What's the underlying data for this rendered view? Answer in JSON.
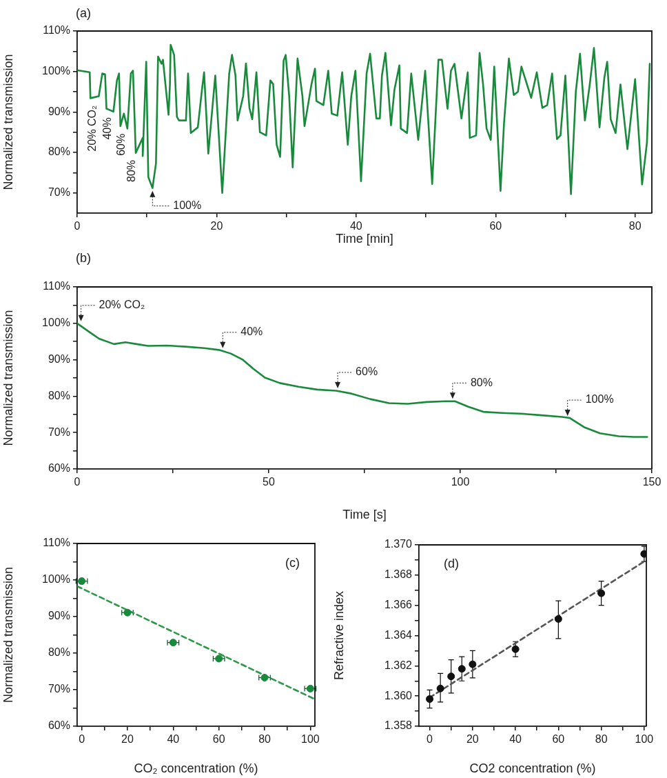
{
  "chart_data": [
    {
      "type": "line",
      "title": "(a)",
      "xlabel": "Time [min]",
      "ylabel": "Normalized transmission",
      "color": "#188a3c",
      "x": [
        0.1,
        1.8,
        1.9,
        3.1,
        3.6,
        4.0,
        4.2,
        5.2,
        5.7,
        6.0,
        6.2,
        6.7,
        7.2,
        7.7,
        8.0,
        8.4,
        9.4,
        9.4,
        9.9,
        10.2,
        10.8,
        11.3,
        11.6,
        12.1,
        12.3,
        13.1,
        13.3,
        13.4,
        13.9,
        14.3,
        14.6,
        15.6,
        15.9,
        16.3,
        17.3,
        17.9,
        18.2,
        18.8,
        19.8,
        20.8,
        21.8,
        22.2,
        22.7,
        23.0,
        23.8,
        24.2,
        24.7,
        25.1,
        25.7,
        26.2,
        27.1,
        27.7,
        28.1,
        28.6,
        29.1,
        29.6,
        29.9,
        30.4,
        30.9,
        31.6,
        32.3,
        32.6,
        33.6,
        34.1,
        34.3,
        35.3,
        36.0,
        36.5,
        37.3,
        38.0,
        38.8,
        39.3,
        39.9,
        40.7,
        41.5,
        42.0,
        42.9,
        43.4,
        43.7,
        44.2,
        45.0,
        45.5,
        46.2,
        46.4,
        47.3,
        47.9,
        48.9,
        49.9,
        50.9,
        51.8,
        52.3,
        53.1,
        53.6,
        54.1,
        55.1,
        56.0,
        56.3,
        57.2,
        57.7,
        58.2,
        58.7,
        59.3,
        59.8,
        60.7,
        61.2,
        61.9,
        62.6,
        63.2,
        63.7,
        65.1,
        65.9,
        66.7,
        67.4,
        68.1,
        68.8,
        69.3,
        70.0,
        70.8,
        71.5,
        72.1,
        72.8,
        73.5,
        74.1,
        74.9,
        75.6,
        76.0,
        76.5,
        77.2,
        77.9,
        78.9,
        80.0,
        81.0,
        81.7,
        82.1
      ],
      "values": [
        100.3,
        99.8,
        93.4,
        93.9,
        99.5,
        99.3,
        90.8,
        90.1,
        97.8,
        99.5,
        86.5,
        89.6,
        85.9,
        99.5,
        100.2,
        79.9,
        83.6,
        79.1,
        102.4,
        73.9,
        71.2,
        77.3,
        103.7,
        101.9,
        102.9,
        89.3,
        96.8,
        106.6,
        104.1,
        88.8,
        87.9,
        87.9,
        99.5,
        84.8,
        86.2,
        95.6,
        99.8,
        79.7,
        99.0,
        70.0,
        99.5,
        104.1,
        99.0,
        87.9,
        93.9,
        102.0,
        91.0,
        88.2,
        99.8,
        85.0,
        84.2,
        97.8,
        96.9,
        81.9,
        78.9,
        102.7,
        104.1,
        93.9,
        76.3,
        103.2,
        93.9,
        86.5,
        96.9,
        100.7,
        92.7,
        91.7,
        100.2,
        89.6,
        89.1,
        99.8,
        81.9,
        93.9,
        100.2,
        72.9,
        99.5,
        104.4,
        88.4,
        88.4,
        99.0,
        104.6,
        86.7,
        95.6,
        101.5,
        85.9,
        84.8,
        99.5,
        83.1,
        100.2,
        72.2,
        102.9,
        102.9,
        90.8,
        100.2,
        101.9,
        88.4,
        99.8,
        83.6,
        84.2,
        104.6,
        96.8,
        85.9,
        83.1,
        101.2,
        70.5,
        87.1,
        103.2,
        94.2,
        95.0,
        101.2,
        93.5,
        99.8,
        91.0,
        91.7,
        99.5,
        83.3,
        84.2,
        99.0,
        69.7,
        95.0,
        104.4,
        87.9,
        96.8,
        105.8,
        86.2,
        98.6,
        102.4,
        88.2,
        84.8,
        96.8,
        80.8,
        98.1,
        72.1,
        82.5,
        101.9
      ],
      "xlim": [
        0,
        82.4
      ],
      "xticks": [
        0,
        {
          "value": 10,
          "label": null
        },
        20,
        {
          "value": 30,
          "label": null
        },
        40,
        {
          "value": 50,
          "label": null
        },
        60,
        {
          "value": 70,
          "label": null
        },
        80
      ],
      "ylim": [
        65,
        110
      ],
      "yticks": [
        {
          "value": 70,
          "label": "70%"
        },
        {
          "value": 75,
          "label": null
        },
        {
          "value": 80,
          "label": "80%"
        },
        {
          "value": 85,
          "label": null
        },
        {
          "value": 90,
          "label": "90%"
        },
        {
          "value": 95,
          "label": null
        },
        {
          "value": 100,
          "label": "100%"
        },
        {
          "value": 105,
          "label": null
        },
        {
          "value": 110,
          "label": "110%"
        }
      ],
      "annotations": [
        {
          "text": "20% CO₂",
          "x": 2.5,
          "y": 93
        },
        {
          "text": "40%",
          "x": 4.7,
          "y": 90
        },
        {
          "text": "60%",
          "x": 6.7,
          "y": 86
        },
        {
          "text": "80%",
          "x": 8.2,
          "y": 79.5
        },
        {
          "text": "100%",
          "x": 10.8,
          "y": 71.2
        }
      ]
    },
    {
      "type": "line",
      "title": "(b)",
      "xlabel": "Time [s]",
      "ylabel": "Normalized transmission",
      "color": "#188a3c",
      "x": [
        0,
        2.8,
        5.7,
        9.6,
        12.6,
        15.5,
        18.5,
        23.4,
        28.3,
        33.2,
        37,
        40.1,
        43.1,
        46,
        49,
        52.9,
        57.8,
        62.7,
        67.6,
        71.6,
        76.5,
        81.4,
        86.3,
        91.2,
        96.2,
        98.6,
        102.1,
        106,
        110.9,
        115.8,
        120.7,
        126.6,
        128.6,
        132.5,
        136.5,
        141.4,
        145.3,
        148.8
      ],
      "values": [
        100,
        97.9,
        95.8,
        94.3,
        94.8,
        94.3,
        93.8,
        93.9,
        93.6,
        93.2,
        92.7,
        91.7,
        90.1,
        87.5,
        85.1,
        83.6,
        82.6,
        81.8,
        81.5,
        80.7,
        79.2,
        78.1,
        77.9,
        78.4,
        78.6,
        78.6,
        77.1,
        75.7,
        75.4,
        75.2,
        74.8,
        74.3,
        74.0,
        71.4,
        69.8,
        69.0,
        68.8,
        68.8
      ],
      "xlim": [
        0,
        150
      ],
      "xticks": [
        0,
        {
          "value": 25,
          "label": null
        },
        50,
        {
          "value": 75,
          "label": null
        },
        100,
        {
          "value": 125,
          "label": null
        },
        150
      ],
      "ylim": [
        60,
        110
      ],
      "yticks": [
        {
          "value": 60,
          "label": "60%"
        },
        {
          "value": 65,
          "label": null
        },
        {
          "value": 70,
          "label": "70%"
        },
        {
          "value": 75,
          "label": null
        },
        {
          "value": 80,
          "label": "80%"
        },
        {
          "value": 85,
          "label": null
        },
        {
          "value": 90,
          "label": "90%"
        },
        {
          "value": 95,
          "label": null
        },
        {
          "value": 100,
          "label": "100%"
        },
        {
          "value": 105,
          "label": null
        },
        {
          "value": 110,
          "label": "110%"
        }
      ],
      "annotations": [
        {
          "text": "20% CO₂",
          "x": 1,
          "y": 100
        },
        {
          "text": "40%",
          "x": 38,
          "y": 92.6
        },
        {
          "text": "60%",
          "x": 68,
          "y": 81.6
        },
        {
          "text": "80%",
          "x": 98,
          "y": 78.7
        },
        {
          "text": "100%",
          "x": 128,
          "y": 74
        }
      ]
    },
    {
      "type": "scatter",
      "title": "(c)",
      "xlabel": "CO₂ concentration (%)",
      "ylabel": "Normalized transmission",
      "marker": "circle",
      "xlim": [
        -2,
        102
      ],
      "xticks": [
        0,
        {
          "value": 10,
          "label": null
        },
        20,
        {
          "value": 30,
          "label": null
        },
        40,
        {
          "value": 50,
          "label": null
        },
        60,
        {
          "value": 70,
          "label": null
        },
        80,
        {
          "value": 90,
          "label": null
        },
        100
      ],
      "ylim": [
        60,
        110
      ],
      "yticks": [
        {
          "value": 60,
          "label": "60%"
        },
        {
          "value": 65,
          "label": null
        },
        {
          "value": 70,
          "label": "70%"
        },
        {
          "value": 75,
          "label": null
        },
        {
          "value": 80,
          "label": "80%"
        },
        {
          "value": 85,
          "label": null
        },
        {
          "value": 90,
          "label": "90%"
        },
        {
          "value": 95,
          "label": null
        },
        {
          "value": 100,
          "label": "100%"
        },
        {
          "value": 105,
          "label": null
        },
        {
          "value": 110,
          "label": "110%"
        }
      ],
      "series": [
        {
          "color": "#188a3c",
          "x": [
            0,
            20,
            40,
            60,
            80,
            100
          ],
          "values": [
            99.7,
            91.1,
            82.9,
            78.5,
            73.3,
            70.3
          ],
          "xerrors": [
            2.5,
            2.5,
            2.5,
            2.5,
            2.5,
            2.5
          ]
        },
        {
          "type": "line",
          "color": "#2a9a48",
          "marker": "none",
          "line_style": "dashed",
          "x": [
            -2,
            102
          ],
          "values": [
            98.3,
            67.4
          ]
        }
      ]
    },
    {
      "type": "scatter",
      "title": "(d)",
      "xlabel": "CO2 concentration (%)",
      "ylabel": "Refractive index",
      "marker": "circle",
      "xlim": [
        -5,
        101
      ],
      "xticks": [
        0,
        {
          "value": 10,
          "label": null
        },
        20,
        {
          "value": 30,
          "label": null
        },
        40,
        {
          "value": 50,
          "label": null
        },
        60,
        {
          "value": 70,
          "label": null
        },
        80,
        {
          "value": 90,
          "label": null
        },
        100
      ],
      "ylim": [
        1.358,
        1.37
      ],
      "yticks": [
        {
          "value": 1.358,
          "label": "1.358"
        },
        {
          "value": 1.359,
          "label": null
        },
        {
          "value": 1.36,
          "label": "1.360"
        },
        {
          "value": 1.361,
          "label": null
        },
        {
          "value": 1.362,
          "label": "1.362"
        },
        {
          "value": 1.363,
          "label": null
        },
        {
          "value": 1.364,
          "label": "1.364"
        },
        {
          "value": 1.365,
          "label": null
        },
        {
          "value": 1.366,
          "label": "1.366"
        },
        {
          "value": 1.367,
          "label": null
        },
        {
          "value": 1.368,
          "label": "1.368"
        },
        {
          "value": 1.369,
          "label": null
        },
        {
          "value": 1.37,
          "label": "1.370"
        }
      ],
      "series": [
        {
          "color": "#111111",
          "x": [
            0,
            5,
            10,
            15,
            20,
            40,
            60,
            80,
            100
          ],
          "values": [
            1.3598,
            1.3605,
            1.3613,
            1.3618,
            1.3621,
            1.3631,
            1.3651,
            1.3668,
            1.3694
          ],
          "errors": [
            [
              1.3592,
              1.3604
            ],
            [
              1.3596,
              1.3615
            ],
            [
              1.3602,
              1.3624
            ],
            [
              1.361,
              1.3626
            ],
            [
              1.3612,
              1.363
            ],
            [
              1.3626,
              1.3636
            ],
            [
              1.3638,
              1.3663
            ],
            [
              1.366,
              1.3676
            ],
            [
              1.3689,
              1.3699
            ]
          ]
        },
        {
          "type": "line",
          "color": "#555555",
          "marker": "none",
          "line_style": "dashed",
          "x": [
            0,
            100
          ],
          "values": [
            1.3599,
            1.3689
          ]
        }
      ]
    }
  ]
}
